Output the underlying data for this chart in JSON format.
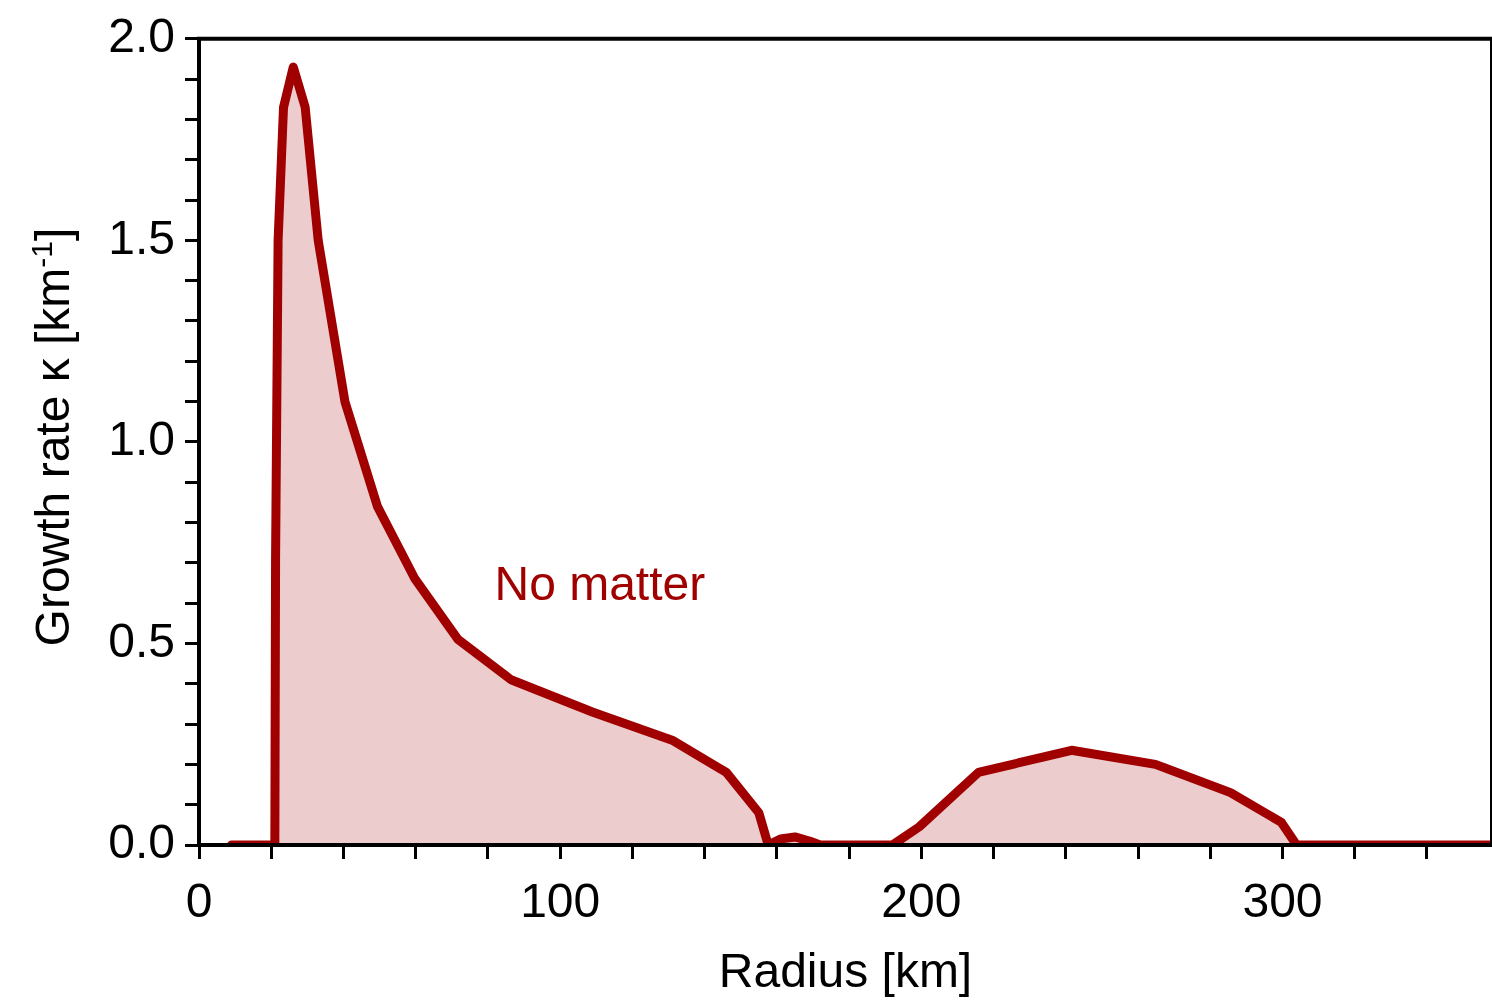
{
  "chart_data": {
    "type": "area",
    "xlabel": "Radius [km]",
    "ylabel": "Growth rate  κ [km$^{-1}$]",
    "x": [
      9,
      21,
      21.2,
      21.9,
      23.4,
      26.1,
      29.4,
      33,
      40.4,
      49.4,
      59.8,
      71.7,
      86.4,
      108.9,
      131,
      146,
      155,
      157.6,
      161,
      165,
      169,
      172,
      192,
      199.4,
      215.8,
      241.6,
      264.8,
      285.6,
      299.7,
      303.9,
      358
    ],
    "series": [
      {
        "color": "#a00000",
        "values": [
          0,
          0,
          0.71,
          1.5,
          1.83,
          1.93,
          1.83,
          1.5,
          1.1,
          0.84,
          0.66,
          0.51,
          0.41,
          0.33,
          0.26,
          0.18,
          0.08,
          0,
          0.015,
          0.02,
          0.01,
          0,
          0,
          0.045,
          0.18,
          0.235,
          0.2,
          0.13,
          0.056,
          0,
          0
        ]
      }
    ],
    "xlim": [
      0,
      358
    ],
    "xticks": [
      0,
      {
        "value": 20,
        "label": null
      },
      {
        "value": 40,
        "label": null
      },
      {
        "value": 60,
        "label": null
      },
      {
        "value": 80,
        "label": null
      },
      100,
      {
        "value": 120,
        "label": null
      },
      {
        "value": 140,
        "label": null
      },
      {
        "value": 160,
        "label": null
      },
      {
        "value": 180,
        "label": null
      },
      200,
      {
        "value": 220,
        "label": null
      },
      {
        "value": 240,
        "label": null
      },
      {
        "value": 260,
        "label": null
      },
      {
        "value": 280,
        "label": null
      },
      300,
      {
        "value": 320,
        "label": null
      },
      {
        "value": 340,
        "label": null
      }
    ],
    "ylim": [
      0,
      2
    ],
    "yticks": [
      {
        "value": 0,
        "label": "0.0"
      },
      {
        "value": 0.1,
        "label": null
      },
      {
        "value": 0.2,
        "label": null
      },
      {
        "value": 0.3,
        "label": null
      },
      {
        "value": 0.4,
        "label": null
      },
      {
        "value": 0.5,
        "label": "0.5"
      },
      {
        "value": 0.6,
        "label": null
      },
      {
        "value": 0.7,
        "label": null
      },
      {
        "value": 0.8,
        "label": null
      },
      {
        "value": 0.9,
        "label": null
      },
      {
        "value": 1,
        "label": "1.0"
      },
      {
        "value": 1.1,
        "label": null
      },
      {
        "value": 1.2,
        "label": null
      },
      {
        "value": 1.3,
        "label": null
      },
      {
        "value": 1.4,
        "label": null
      },
      {
        "value": 1.5,
        "label": "1.5"
      },
      {
        "value": 1.6,
        "label": null
      },
      {
        "value": 1.7,
        "label": null
      },
      {
        "value": 1.8,
        "label": null
      },
      {
        "value": 1.9,
        "label": null
      },
      {
        "value": 2,
        "label": "2.0"
      }
    ],
    "annotations": [
      "No matter"
    ],
    "grid": false,
    "legend": false,
    "marker": "none",
    "line_style": "solid"
  }
}
